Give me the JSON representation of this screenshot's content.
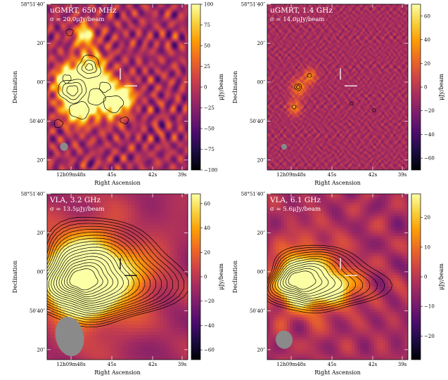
{
  "colors": {
    "colormap": [
      "#000004",
      "#1b0c41",
      "#4a0c6b",
      "#781c6d",
      "#a52c60",
      "#cf4446",
      "#ed6925",
      "#fb9b06",
      "#f7d13d",
      "#fcffa4"
    ],
    "contour": "#000000",
    "beam": "#8a8a8a",
    "marker": "#ffffff"
  },
  "chart_data": [
    {
      "type": "heatmap",
      "title": "uGMRT, 650 MHz",
      "sigma_label": "σ = 20.0μJy/beam",
      "xlabel": "Right Ascension",
      "ylabel": "Declination",
      "x_ticks": [
        "12h09m48s",
        "45s",
        "42s",
        "39s"
      ],
      "y_ticks": [
        "58°51′40″",
        "20″",
        "00″",
        "50′40″",
        "20″"
      ],
      "colorbar_label": "μJy/beam",
      "colorbar_ticks": [
        "100",
        "75",
        "50",
        "25",
        "0",
        "−25",
        "−50",
        "−75",
        "−100"
      ],
      "colorbar_range": [
        -100,
        100
      ],
      "beam": "small",
      "source": "clumpy"
    },
    {
      "type": "heatmap",
      "title": "uGMRT, 1.4 GHz",
      "sigma_label": "σ = 14.0μJy/beam",
      "xlabel": "Right Ascension",
      "ylabel": "Declination",
      "x_ticks": [
        "12h09m48s",
        "45s",
        "42s",
        "39s"
      ],
      "y_ticks": [
        "58°51′40″",
        "20″",
        "00″",
        "50′40″",
        "20″"
      ],
      "colorbar_label": "μJy/beam",
      "colorbar_ticks": [
        "60",
        "40",
        "20",
        "0",
        "−20",
        "−40",
        "−60"
      ],
      "colorbar_range": [
        -70,
        70
      ],
      "beam": "tiny",
      "source": "faint"
    },
    {
      "type": "heatmap",
      "title": "VLA, 3.2 GHz",
      "sigma_label": "σ = 13.5μJy/beam",
      "xlabel": "Right Ascension",
      "ylabel": "Declination",
      "x_ticks": [
        "12h09m48s",
        "45s",
        "42s",
        "39s"
      ],
      "y_ticks": [
        "58°51′40″",
        "20″",
        "00″",
        "50′40″",
        "20″"
      ],
      "colorbar_label": "μJy/beam",
      "colorbar_ticks": [
        "60",
        "40",
        "20",
        "0",
        "−20",
        "−40",
        "−60"
      ],
      "colorbar_range": [
        -68,
        68
      ],
      "beam": "large",
      "source": "bright"
    },
    {
      "type": "heatmap",
      "title": "VLA, 6.1 GHz",
      "sigma_label": "σ = 5.6μJy/beam",
      "xlabel": "Right Ascension",
      "ylabel": "Declination",
      "x_ticks": [
        "12h09m48s",
        "45s",
        "42s",
        "39s"
      ],
      "y_ticks": [
        "58°51′40″",
        "20″",
        "00″",
        "50′40″",
        "20″"
      ],
      "colorbar_label": "μJy/beam",
      "colorbar_ticks": [
        "20",
        "10",
        "0",
        "−10",
        "−20"
      ],
      "colorbar_range": [
        -28,
        28
      ],
      "beam": "medium",
      "source": "tailed"
    }
  ]
}
